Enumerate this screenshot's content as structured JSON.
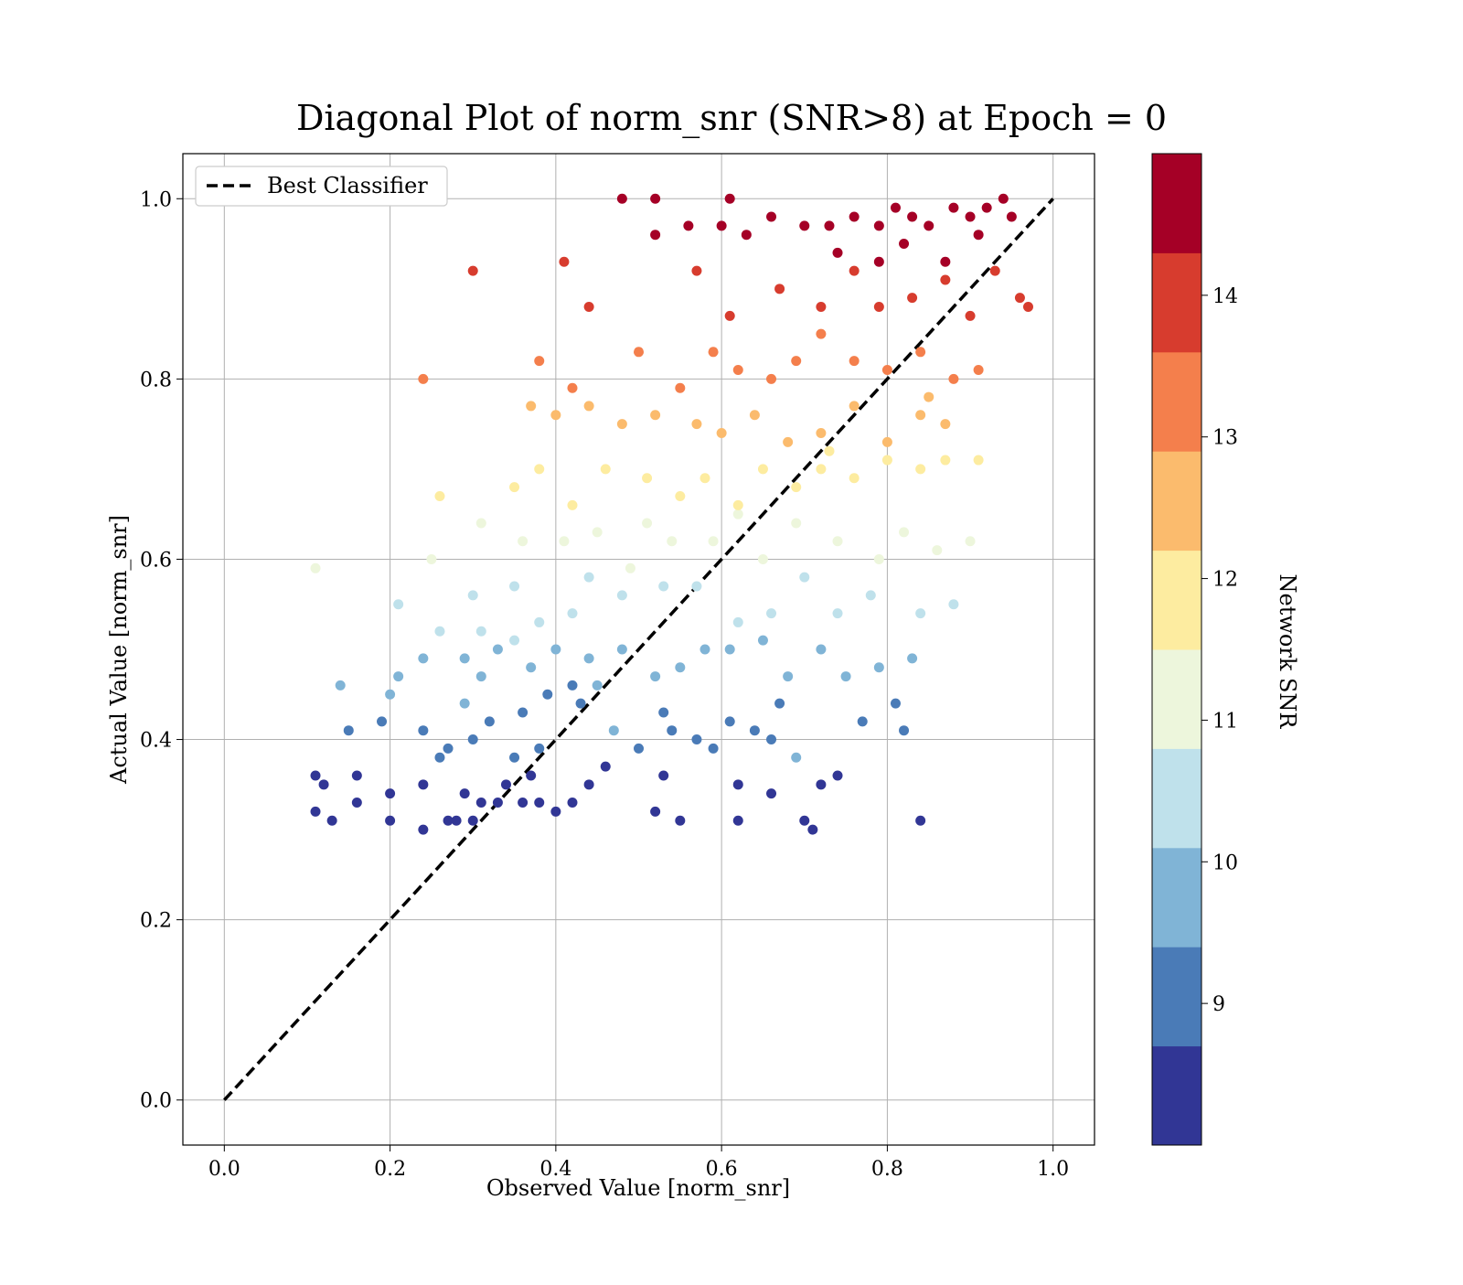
{
  "chart_data": {
    "type": "scatter",
    "title": "Diagonal Plot of norm_snr (SNR>8) at Epoch = 0",
    "xlabel": "Observed Value [norm_snr]",
    "ylabel": "Actual Value [norm_snr]",
    "xlim": [
      -0.05,
      1.05
    ],
    "ylim": [
      -0.05,
      1.05
    ],
    "xticks": [
      "0.0",
      "0.2",
      "0.4",
      "0.6",
      "0.8",
      "1.0"
    ],
    "yticks": [
      "0.0",
      "0.2",
      "0.4",
      "0.6",
      "0.8",
      "1.0"
    ],
    "grid": true,
    "legend": {
      "placement": "top-left",
      "entries": [
        "Best Classifier"
      ]
    },
    "reference_line": {
      "name": "Best Classifier",
      "style": "dashed",
      "color": "#000000",
      "x": [
        0,
        1
      ],
      "y": [
        0,
        1
      ]
    },
    "colorbar": {
      "label": "Network SNR",
      "range": [
        8,
        15
      ],
      "tick_labels": [
        "9",
        "10",
        "11",
        "12",
        "13",
        "14"
      ],
      "bins": [
        "#313695",
        "#4a7bb7",
        "#80b4d6",
        "#bfe1eb",
        "#edf6dc",
        "#fdeca0",
        "#fbbb6d",
        "#f47f4c",
        "#d73c2e",
        "#a50026"
      ]
    },
    "points": [
      [
        0.11,
        0.36,
        8.2
      ],
      [
        0.13,
        0.31,
        8.3
      ],
      [
        0.2,
        0.34,
        8.4
      ],
      [
        0.24,
        0.35,
        8.5
      ],
      [
        0.29,
        0.34,
        8.6
      ],
      [
        0.34,
        0.35,
        8.3
      ],
      [
        0.4,
        0.32,
        8.2
      ],
      [
        0.44,
        0.35,
        8.5
      ],
      [
        0.53,
        0.36,
        8.4
      ],
      [
        0.62,
        0.35,
        8.6
      ],
      [
        0.66,
        0.34,
        8.3
      ],
      [
        0.72,
        0.35,
        8.5
      ],
      [
        0.84,
        0.31,
        8.2
      ],
      [
        0.11,
        0.32,
        8.4
      ],
      [
        0.12,
        0.35,
        8.4
      ],
      [
        0.16,
        0.33,
        8.4
      ],
      [
        0.2,
        0.31,
        8.4
      ],
      [
        0.24,
        0.3,
        8.4
      ],
      [
        0.28,
        0.31,
        8.4
      ],
      [
        0.3,
        0.31,
        8.4
      ],
      [
        0.31,
        0.33,
        8.4
      ],
      [
        0.33,
        0.33,
        8.4
      ],
      [
        0.36,
        0.33,
        8.4
      ],
      [
        0.37,
        0.36,
        8.4
      ],
      [
        0.38,
        0.33,
        8.4
      ],
      [
        0.42,
        0.33,
        8.4
      ],
      [
        0.46,
        0.37,
        8.4
      ],
      [
        0.52,
        0.32,
        8.4
      ],
      [
        0.55,
        0.31,
        8.4
      ],
      [
        0.62,
        0.31,
        8.4
      ],
      [
        0.7,
        0.31,
        8.4
      ],
      [
        0.71,
        0.3,
        8.4
      ],
      [
        0.74,
        0.36,
        8.4
      ],
      [
        0.27,
        0.31,
        8.4
      ],
      [
        0.16,
        0.36,
        8.4
      ],
      [
        0.15,
        0.41,
        9.2
      ],
      [
        0.19,
        0.42,
        9.0
      ],
      [
        0.24,
        0.41,
        9.3
      ],
      [
        0.27,
        0.39,
        9.1
      ],
      [
        0.29,
        0.44,
        9.4
      ],
      [
        0.32,
        0.42,
        9.2
      ],
      [
        0.36,
        0.43,
        9.0
      ],
      [
        0.39,
        0.45,
        9.3
      ],
      [
        0.43,
        0.44,
        9.1
      ],
      [
        0.47,
        0.41,
        9.4
      ],
      [
        0.53,
        0.43,
        9.2
      ],
      [
        0.57,
        0.4,
        9.0
      ],
      [
        0.61,
        0.42,
        9.3
      ],
      [
        0.64,
        0.41,
        9.1
      ],
      [
        0.67,
        0.44,
        9.2
      ],
      [
        0.69,
        0.38,
        9.4
      ],
      [
        0.77,
        0.42,
        9.1
      ],
      [
        0.81,
        0.44,
        9.3
      ],
      [
        0.82,
        0.41,
        9.2
      ],
      [
        0.26,
        0.38,
        9.2
      ],
      [
        0.3,
        0.4,
        9.2
      ],
      [
        0.35,
        0.38,
        9.2
      ],
      [
        0.38,
        0.39,
        9.2
      ],
      [
        0.42,
        0.46,
        9.2
      ],
      [
        0.5,
        0.39,
        9.2
      ],
      [
        0.59,
        0.39,
        9.2
      ],
      [
        0.66,
        0.4,
        9.2
      ],
      [
        0.54,
        0.41,
        9.2
      ],
      [
        0.14,
        0.46,
        9.8
      ],
      [
        0.2,
        0.45,
        9.9
      ],
      [
        0.24,
        0.49,
        9.8
      ],
      [
        0.29,
        0.49,
        9.9
      ],
      [
        0.33,
        0.5,
        9.8
      ],
      [
        0.37,
        0.48,
        9.9
      ],
      [
        0.4,
        0.5,
        9.8
      ],
      [
        0.45,
        0.46,
        9.9
      ],
      [
        0.48,
        0.5,
        9.8
      ],
      [
        0.52,
        0.47,
        9.9
      ],
      [
        0.55,
        0.48,
        9.8
      ],
      [
        0.61,
        0.5,
        9.9
      ],
      [
        0.65,
        0.51,
        9.8
      ],
      [
        0.68,
        0.47,
        9.9
      ],
      [
        0.72,
        0.5,
        9.8
      ],
      [
        0.75,
        0.47,
        9.9
      ],
      [
        0.79,
        0.48,
        9.8
      ],
      [
        0.83,
        0.49,
        9.9
      ],
      [
        0.21,
        0.47,
        9.8
      ],
      [
        0.31,
        0.47,
        9.8
      ],
      [
        0.44,
        0.49,
        9.8
      ],
      [
        0.58,
        0.5,
        9.8
      ],
      [
        0.21,
        0.55,
        10.3
      ],
      [
        0.26,
        0.52,
        10.5
      ],
      [
        0.3,
        0.56,
        10.4
      ],
      [
        0.35,
        0.57,
        10.3
      ],
      [
        0.38,
        0.53,
        10.5
      ],
      [
        0.42,
        0.54,
        10.4
      ],
      [
        0.44,
        0.58,
        10.3
      ],
      [
        0.48,
        0.56,
        10.5
      ],
      [
        0.53,
        0.57,
        10.4
      ],
      [
        0.57,
        0.57,
        10.3
      ],
      [
        0.62,
        0.53,
        10.5
      ],
      [
        0.66,
        0.54,
        10.4
      ],
      [
        0.7,
        0.58,
        10.3
      ],
      [
        0.74,
        0.54,
        10.5
      ],
      [
        0.78,
        0.56,
        10.4
      ],
      [
        0.84,
        0.54,
        10.3
      ],
      [
        0.88,
        0.55,
        10.5
      ],
      [
        0.31,
        0.52,
        10.4
      ],
      [
        0.35,
        0.51,
        10.4
      ],
      [
        0.11,
        0.59,
        11.2
      ],
      [
        0.25,
        0.6,
        11.3
      ],
      [
        0.31,
        0.64,
        11.1
      ],
      [
        0.36,
        0.62,
        11.2
      ],
      [
        0.41,
        0.62,
        11.3
      ],
      [
        0.45,
        0.63,
        11.1
      ],
      [
        0.49,
        0.59,
        11.2
      ],
      [
        0.51,
        0.64,
        11.3
      ],
      [
        0.54,
        0.62,
        11.1
      ],
      [
        0.59,
        0.62,
        11.2
      ],
      [
        0.62,
        0.65,
        11.3
      ],
      [
        0.65,
        0.6,
        11.1
      ],
      [
        0.69,
        0.64,
        11.2
      ],
      [
        0.74,
        0.62,
        11.3
      ],
      [
        0.79,
        0.6,
        11.1
      ],
      [
        0.82,
        0.63,
        11.2
      ],
      [
        0.86,
        0.61,
        11.3
      ],
      [
        0.9,
        0.62,
        11.1
      ],
      [
        0.26,
        0.67,
        12.0
      ],
      [
        0.35,
        0.68,
        11.9
      ],
      [
        0.38,
        0.7,
        12.0
      ],
      [
        0.42,
        0.66,
        11.8
      ],
      [
        0.46,
        0.7,
        12.0
      ],
      [
        0.51,
        0.69,
        11.9
      ],
      [
        0.55,
        0.67,
        12.0
      ],
      [
        0.58,
        0.69,
        11.8
      ],
      [
        0.62,
        0.66,
        12.0
      ],
      [
        0.65,
        0.7,
        11.9
      ],
      [
        0.69,
        0.68,
        12.0
      ],
      [
        0.72,
        0.7,
        11.8
      ],
      [
        0.76,
        0.69,
        12.0
      ],
      [
        0.8,
        0.71,
        11.9
      ],
      [
        0.84,
        0.7,
        12.0
      ],
      [
        0.87,
        0.71,
        11.8
      ],
      [
        0.91,
        0.71,
        12.0
      ],
      [
        0.73,
        0.72,
        11.9
      ],
      [
        0.37,
        0.77,
        12.5
      ],
      [
        0.4,
        0.76,
        12.6
      ],
      [
        0.44,
        0.77,
        12.4
      ],
      [
        0.48,
        0.75,
        12.5
      ],
      [
        0.52,
        0.76,
        12.6
      ],
      [
        0.57,
        0.75,
        12.4
      ],
      [
        0.6,
        0.74,
        12.5
      ],
      [
        0.64,
        0.76,
        12.6
      ],
      [
        0.68,
        0.73,
        12.4
      ],
      [
        0.72,
        0.74,
        12.5
      ],
      [
        0.76,
        0.77,
        12.6
      ],
      [
        0.8,
        0.73,
        12.4
      ],
      [
        0.84,
        0.76,
        12.5
      ],
      [
        0.87,
        0.75,
        12.6
      ],
      [
        0.85,
        0.78,
        12.4
      ],
      [
        0.24,
        0.8,
        13.2
      ],
      [
        0.38,
        0.82,
        13.3
      ],
      [
        0.42,
        0.79,
        13.1
      ],
      [
        0.5,
        0.83,
        13.2
      ],
      [
        0.55,
        0.79,
        13.3
      ],
      [
        0.59,
        0.83,
        13.1
      ],
      [
        0.62,
        0.81,
        13.2
      ],
      [
        0.66,
        0.8,
        13.3
      ],
      [
        0.69,
        0.82,
        13.1
      ],
      [
        0.72,
        0.85,
        13.2
      ],
      [
        0.76,
        0.82,
        13.3
      ],
      [
        0.8,
        0.81,
        13.1
      ],
      [
        0.84,
        0.83,
        13.2
      ],
      [
        0.88,
        0.8,
        13.3
      ],
      [
        0.91,
        0.81,
        13.1
      ],
      [
        0.3,
        0.92,
        13.8
      ],
      [
        0.41,
        0.93,
        13.9
      ],
      [
        0.44,
        0.88,
        13.7
      ],
      [
        0.57,
        0.92,
        13.8
      ],
      [
        0.61,
        0.87,
        13.9
      ],
      [
        0.67,
        0.9,
        13.7
      ],
      [
        0.72,
        0.88,
        13.8
      ],
      [
        0.76,
        0.92,
        13.9
      ],
      [
        0.79,
        0.88,
        13.7
      ],
      [
        0.83,
        0.89,
        13.8
      ],
      [
        0.87,
        0.91,
        13.9
      ],
      [
        0.9,
        0.87,
        13.7
      ],
      [
        0.93,
        0.92,
        13.8
      ],
      [
        0.96,
        0.89,
        13.9
      ],
      [
        0.97,
        0.88,
        13.7
      ],
      [
        0.48,
        1.0,
        14.5
      ],
      [
        0.52,
        1.0,
        14.6
      ],
      [
        0.52,
        0.96,
        14.4
      ],
      [
        0.56,
        0.97,
        14.5
      ],
      [
        0.6,
        0.97,
        14.6
      ],
      [
        0.61,
        1.0,
        14.4
      ],
      [
        0.63,
        0.96,
        14.5
      ],
      [
        0.66,
        0.98,
        14.6
      ],
      [
        0.7,
        0.97,
        14.4
      ],
      [
        0.73,
        0.97,
        14.5
      ],
      [
        0.76,
        0.98,
        14.6
      ],
      [
        0.79,
        0.97,
        14.4
      ],
      [
        0.81,
        0.99,
        14.5
      ],
      [
        0.83,
        0.98,
        14.6
      ],
      [
        0.85,
        0.97,
        14.4
      ],
      [
        0.88,
        0.99,
        14.5
      ],
      [
        0.9,
        0.98,
        14.6
      ],
      [
        0.92,
        0.99,
        14.4
      ],
      [
        0.94,
        1.0,
        14.5
      ],
      [
        0.95,
        0.98,
        14.6
      ],
      [
        0.74,
        0.94,
        14.5
      ],
      [
        0.79,
        0.93,
        14.5
      ],
      [
        0.82,
        0.95,
        14.5
      ],
      [
        0.87,
        0.93,
        14.5
      ],
      [
        0.91,
        0.96,
        14.5
      ]
    ]
  }
}
